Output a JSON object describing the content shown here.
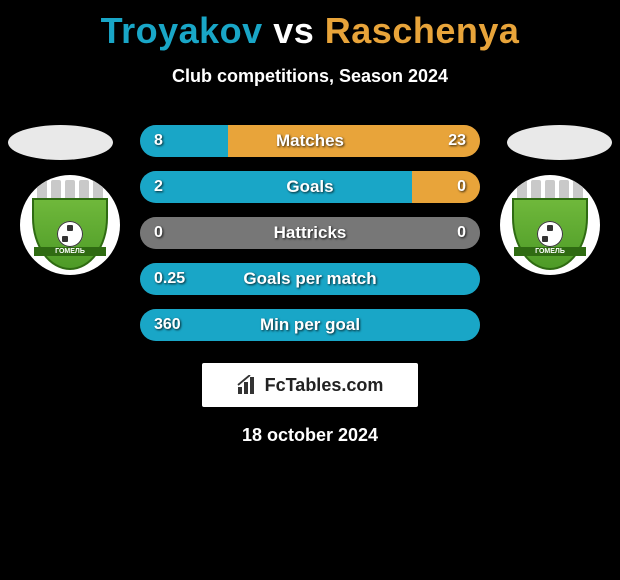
{
  "title": {
    "player1": "Troyakov",
    "vs": "vs",
    "player2": "Raschenya",
    "player1_color": "#19a6c7",
    "vs_color": "#ffffff",
    "player2_color": "#e8a43a"
  },
  "subtitle": "Club competitions, Season 2024",
  "date": "18 october 2024",
  "brand": {
    "text": "FcTables.com",
    "icon_name": "bar-chart-icon"
  },
  "colors": {
    "background": "#000000",
    "left_fill": "#19a6c7",
    "right_fill": "#e8a43a",
    "neutral_fill": "#777777",
    "text": "#ffffff"
  },
  "club_badge_text": "ГОМЕЛЬ",
  "stats": [
    {
      "label": "Matches",
      "left_value": "8",
      "right_value": "23",
      "left_pct": 25.8,
      "right_pct": 74.2,
      "left_color": "#19a6c7",
      "right_color": "#e8a43a"
    },
    {
      "label": "Goals",
      "left_value": "2",
      "right_value": "0",
      "left_pct": 80,
      "right_pct": 20,
      "left_color": "#19a6c7",
      "right_color": "#e8a43a"
    },
    {
      "label": "Hattricks",
      "left_value": "0",
      "right_value": "0",
      "left_pct": 50,
      "right_pct": 50,
      "left_color": "#777777",
      "right_color": "#777777"
    },
    {
      "label": "Goals per match",
      "left_value": "0.25",
      "right_value": "",
      "left_pct": 100,
      "right_pct": 0,
      "left_color": "#19a6c7",
      "right_color": "#e8a43a"
    },
    {
      "label": "Min per goal",
      "left_value": "360",
      "right_value": "",
      "left_pct": 100,
      "right_pct": 0,
      "left_color": "#19a6c7",
      "right_color": "#e8a43a"
    }
  ]
}
